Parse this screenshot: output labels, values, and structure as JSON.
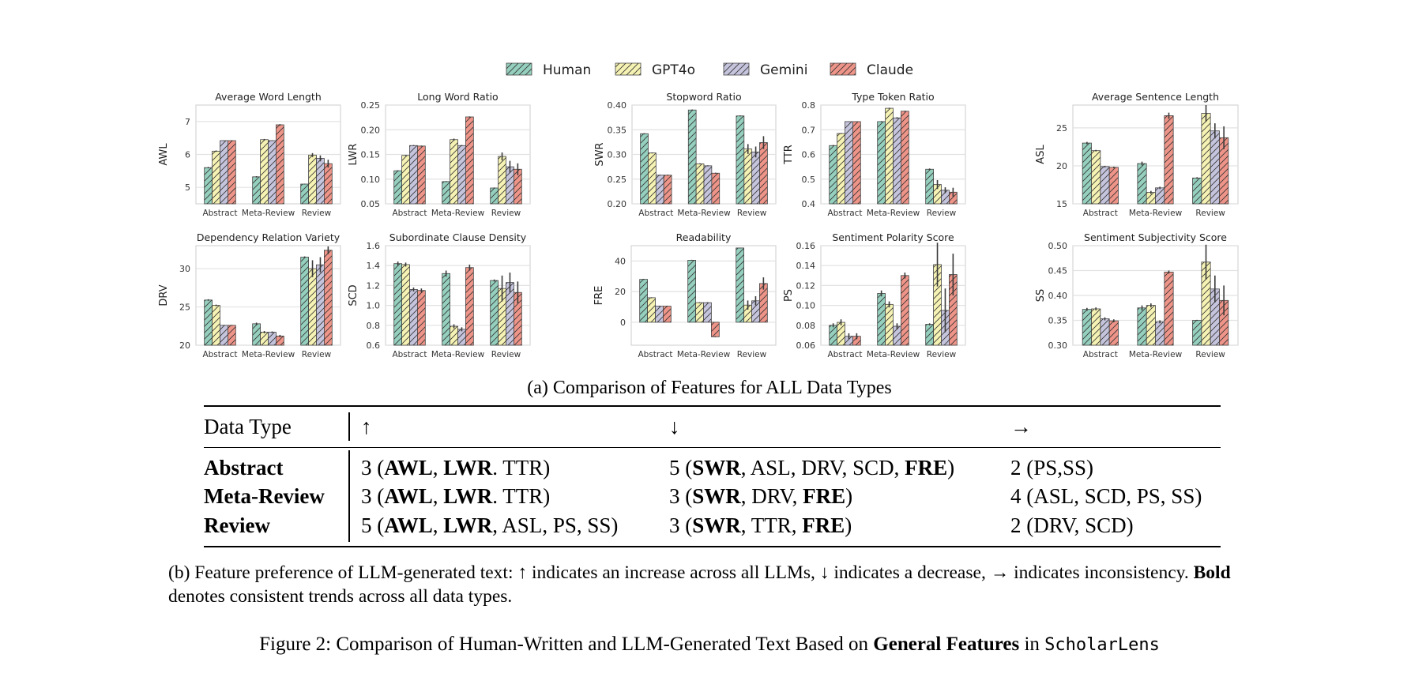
{
  "legend": [
    {
      "name": "Human",
      "color": "#95cfbd"
    },
    {
      "name": "GPT4o",
      "color": "#f5f2b3"
    },
    {
      "name": "Gemini",
      "color": "#c5c4dd"
    },
    {
      "name": "Claude",
      "color": "#ee9488"
    }
  ],
  "chart_data": [
    {
      "type": "bar",
      "title": "Average Word Length",
      "ylabel": "AWL",
      "ylim": [
        4.5,
        7.5
      ],
      "yticks": [
        5,
        6,
        7
      ],
      "grid": true,
      "categories": [
        "Abstract",
        "Meta-Review",
        "Review"
      ],
      "series": [
        {
          "name": "Human",
          "values": [
            5.6,
            5.32,
            5.1
          ],
          "errors": [
            0.02,
            0.02,
            0.01
          ]
        },
        {
          "name": "GPT4o",
          "values": [
            6.1,
            6.45,
            5.98
          ],
          "errors": [
            0.02,
            0.02,
            0.06
          ]
        },
        {
          "name": "Gemini",
          "values": [
            6.42,
            6.42,
            5.88
          ],
          "errors": [
            0.01,
            0.01,
            0.09
          ]
        },
        {
          "name": "Claude",
          "values": [
            6.42,
            6.9,
            5.72
          ],
          "errors": [
            0.01,
            0.02,
            0.12
          ]
        }
      ]
    },
    {
      "type": "bar",
      "title": "Long Word Ratio",
      "ylabel": "LWR",
      "ylim": [
        0.05,
        0.25
      ],
      "yticks": [
        0.05,
        0.1,
        0.15,
        0.2,
        0.25
      ],
      "grid": true,
      "categories": [
        "Abstract",
        "Meta-Review",
        "Review"
      ],
      "series": [
        {
          "name": "Human",
          "values": [
            0.117,
            0.095,
            0.082
          ],
          "errors": [
            0.001,
            0.001,
            0.001
          ]
        },
        {
          "name": "GPT4o",
          "values": [
            0.148,
            0.18,
            0.146
          ],
          "errors": [
            0.001,
            0.002,
            0.008
          ]
        },
        {
          "name": "Gemini",
          "values": [
            0.168,
            0.168,
            0.125
          ],
          "errors": [
            0.001,
            0.001,
            0.012
          ]
        },
        {
          "name": "Claude",
          "values": [
            0.167,
            0.226,
            0.12
          ],
          "errors": [
            0.001,
            0.001,
            0.012
          ]
        }
      ]
    },
    {
      "type": "bar",
      "title": "Stopword Ratio",
      "ylabel": "SWR",
      "ylim": [
        0.2,
        0.4
      ],
      "yticks": [
        0.2,
        0.25,
        0.3,
        0.35,
        0.4
      ],
      "grid": true,
      "categories": [
        "Abstract",
        "Meta-Review",
        "Review"
      ],
      "series": [
        {
          "name": "Human",
          "values": [
            0.342,
            0.39,
            0.378
          ],
          "errors": [
            0.001,
            0.001,
            0.001
          ]
        },
        {
          "name": "GPT4o",
          "values": [
            0.303,
            0.281,
            0.311
          ],
          "errors": [
            0.001,
            0.001,
            0.01
          ]
        },
        {
          "name": "Gemini",
          "values": [
            0.258,
            0.277,
            0.305
          ],
          "errors": [
            0.001,
            0.001,
            0.011
          ]
        },
        {
          "name": "Claude",
          "values": [
            0.258,
            0.262,
            0.324
          ],
          "errors": [
            0.001,
            0.001,
            0.013
          ]
        }
      ]
    },
    {
      "type": "bar",
      "title": "Type Token Ratio",
      "ylabel": "TTR",
      "ylim": [
        0.4,
        0.8
      ],
      "yticks": [
        0.4,
        0.5,
        0.6,
        0.7,
        0.8
      ],
      "grid": true,
      "categories": [
        "Abstract",
        "Meta-Review",
        "Review"
      ],
      "series": [
        {
          "name": "Human",
          "values": [
            0.636,
            0.733,
            0.54
          ],
          "errors": [
            0.002,
            0.002,
            0.003
          ]
        },
        {
          "name": "GPT4o",
          "values": [
            0.685,
            0.787,
            0.478
          ],
          "errors": [
            0.002,
            0.002,
            0.018
          ]
        },
        {
          "name": "Gemini",
          "values": [
            0.733,
            0.748,
            0.455
          ],
          "errors": [
            0.001,
            0.003,
            0.012
          ]
        },
        {
          "name": "Claude",
          "values": [
            0.733,
            0.775,
            0.447
          ],
          "errors": [
            0.001,
            0.002,
            0.018
          ]
        }
      ]
    },
    {
      "type": "bar",
      "title": "Average Sentence Length",
      "ylabel": "ASL",
      "ylim": [
        15,
        28
      ],
      "yticks": [
        15,
        20,
        25
      ],
      "grid": true,
      "categories": [
        "Abstract",
        "Meta-Review",
        "Review"
      ],
      "series": [
        {
          "name": "Human",
          "values": [
            23.0,
            20.3,
            18.4
          ],
          "errors": [
            0.15,
            0.25,
            0.1
          ]
        },
        {
          "name": "GPT4o",
          "values": [
            22.0,
            16.5,
            26.9
          ],
          "errors": [
            0.1,
            0.2,
            1.1
          ]
        },
        {
          "name": "Gemini",
          "values": [
            19.9,
            17.1,
            24.6
          ],
          "errors": [
            0.1,
            0.15,
            1.0
          ]
        },
        {
          "name": "Claude",
          "values": [
            19.8,
            26.6,
            23.7
          ],
          "errors": [
            0.1,
            0.4,
            1.5
          ]
        }
      ]
    },
    {
      "type": "bar",
      "title": "Dependency Relation Variety",
      "ylabel": "DRV",
      "ylim": [
        20,
        33
      ],
      "yticks": [
        20,
        25,
        30
      ],
      "grid": true,
      "categories": [
        "Abstract",
        "Meta-Review",
        "Review"
      ],
      "series": [
        {
          "name": "Human",
          "values": [
            25.9,
            22.8,
            31.5
          ],
          "errors": [
            0.1,
            0.15,
            0.1
          ]
        },
        {
          "name": "GPT4o",
          "values": [
            25.2,
            21.7,
            30.0
          ],
          "errors": [
            0.1,
            0.15,
            1.1
          ]
        },
        {
          "name": "Gemini",
          "values": [
            22.6,
            21.7,
            30.5
          ],
          "errors": [
            0.05,
            0.1,
            1.0
          ]
        },
        {
          "name": "Claude",
          "values": [
            22.6,
            21.2,
            32.4
          ],
          "errors": [
            0.05,
            0.15,
            0.5
          ]
        }
      ]
    },
    {
      "type": "bar",
      "title": "Subordinate Clause Density",
      "ylabel": "SCD",
      "ylim": [
        0.6,
        1.6
      ],
      "yticks": [
        0.6,
        0.8,
        1.0,
        1.2,
        1.4,
        1.6
      ],
      "grid": true,
      "categories": [
        "Abstract",
        "Meta-Review",
        "Review"
      ],
      "series": [
        {
          "name": "Human",
          "values": [
            1.42,
            1.32,
            1.25
          ],
          "errors": [
            0.02,
            0.03,
            0.01
          ]
        },
        {
          "name": "GPT4o",
          "values": [
            1.41,
            0.79,
            1.17
          ],
          "errors": [
            0.02,
            0.02,
            0.13
          ]
        },
        {
          "name": "Gemini",
          "values": [
            1.16,
            0.76,
            1.23
          ],
          "errors": [
            0.02,
            0.02,
            0.1
          ]
        },
        {
          "name": "Claude",
          "values": [
            1.15,
            1.38,
            1.13
          ],
          "errors": [
            0.02,
            0.03,
            0.11
          ]
        }
      ]
    },
    {
      "type": "bar",
      "title": "Readability",
      "ylabel": "FRE",
      "ylim": [
        -15,
        50
      ],
      "yticks": [
        0,
        20,
        40
      ],
      "grid": true,
      "categories": [
        "Abstract",
        "Meta-Review",
        "Review"
      ],
      "series": [
        {
          "name": "Human",
          "values": [
            28,
            40.5,
            48.5
          ],
          "errors": [
            0.3,
            0.3,
            0.2
          ]
        },
        {
          "name": "GPT4o",
          "values": [
            16,
            12.8,
            11.2
          ],
          "errors": [
            0.3,
            0.3,
            3
          ]
        },
        {
          "name": "Gemini",
          "values": [
            10.5,
            12.8,
            14
          ],
          "errors": [
            0.3,
            0.3,
            3
          ]
        },
        {
          "name": "Claude",
          "values": [
            10.5,
            -9.5,
            25.3
          ],
          "errors": [
            0.3,
            0.3,
            4
          ]
        }
      ]
    },
    {
      "type": "bar",
      "title": "Sentiment Polarity Score",
      "ylabel": "PS",
      "ylim": [
        0.06,
        0.16
      ],
      "yticks": [
        0.06,
        0.08,
        0.1,
        0.12,
        0.14,
        0.16
      ],
      "grid": true,
      "categories": [
        "Abstract",
        "Meta-Review",
        "Review"
      ],
      "series": [
        {
          "name": "Human",
          "values": [
            0.08,
            0.112,
            0.081
          ],
          "errors": [
            0.002,
            0.003,
            0.001
          ]
        },
        {
          "name": "GPT4o",
          "values": [
            0.083,
            0.101,
            0.141
          ],
          "errors": [
            0.003,
            0.003,
            0.022
          ]
        },
        {
          "name": "Gemini",
          "values": [
            0.069,
            0.079,
            0.095
          ],
          "errors": [
            0.003,
            0.003,
            0.022
          ]
        },
        {
          "name": "Claude",
          "values": [
            0.069,
            0.13,
            0.131
          ],
          "errors": [
            0.003,
            0.003,
            0.021
          ]
        }
      ]
    },
    {
      "type": "bar",
      "title": "Sentiment Subjectivity Score",
      "ylabel": "SS",
      "ylim": [
        0.3,
        0.5
      ],
      "yticks": [
        0.3,
        0.35,
        0.4,
        0.45,
        0.5
      ],
      "grid": true,
      "categories": [
        "Abstract",
        "Meta-Review",
        "Review"
      ],
      "series": [
        {
          "name": "Human",
          "values": [
            0.372,
            0.375,
            0.35
          ],
          "errors": [
            0.003,
            0.005,
            0.001
          ]
        },
        {
          "name": "GPT4o",
          "values": [
            0.373,
            0.38,
            0.467
          ],
          "errors": [
            0.003,
            0.004,
            0.035
          ]
        },
        {
          "name": "Gemini",
          "values": [
            0.353,
            0.347,
            0.413
          ],
          "errors": [
            0.003,
            0.003,
            0.027
          ]
        },
        {
          "name": "Claude",
          "values": [
            0.349,
            0.447,
            0.39
          ],
          "errors": [
            0.003,
            0.003,
            0.03
          ]
        }
      ]
    }
  ],
  "caption_a": "(a) Comparison of Features for ALL Data Types",
  "table": {
    "headers": [
      "Data Type",
      "↑",
      "↓",
      "→"
    ],
    "rows": [
      {
        "label": "Abstract",
        "cells": [
          [
            {
              "t": "3 ("
            },
            {
              "t": "AWL",
              "b": true
            },
            {
              "t": ", "
            },
            {
              "t": "LWR",
              "b": true
            },
            {
              "t": ". TTR)"
            }
          ],
          [
            {
              "t": "5 ("
            },
            {
              "t": "SWR",
              "b": true
            },
            {
              "t": ", ASL, DRV, SCD, "
            },
            {
              "t": "FRE",
              "b": true
            },
            {
              "t": ")"
            }
          ],
          [
            {
              "t": "2 (PS,SS)"
            }
          ]
        ]
      },
      {
        "label": "Meta-Review",
        "cells": [
          [
            {
              "t": "3 ("
            },
            {
              "t": "AWL",
              "b": true
            },
            {
              "t": ", "
            },
            {
              "t": "LWR",
              "b": true
            },
            {
              "t": ". TTR)"
            }
          ],
          [
            {
              "t": "3 ("
            },
            {
              "t": "SWR",
              "b": true
            },
            {
              "t": ", DRV, "
            },
            {
              "t": "FRE",
              "b": true
            },
            {
              "t": ")"
            }
          ],
          [
            {
              "t": "4 (ASL, SCD, PS, SS)"
            }
          ]
        ]
      },
      {
        "label": "Review",
        "cells": [
          [
            {
              "t": "5 ("
            },
            {
              "t": "AWL",
              "b": true
            },
            {
              "t": ", "
            },
            {
              "t": "LWR",
              "b": true
            },
            {
              "t": ", ASL, PS, SS)"
            }
          ],
          [
            {
              "t": "3 ("
            },
            {
              "t": "SWR",
              "b": true
            },
            {
              "t": ", TTR, "
            },
            {
              "t": "FRE",
              "b": true
            },
            {
              "t": ")"
            }
          ],
          [
            {
              "t": "2 (DRV, SCD)"
            }
          ]
        ]
      }
    ]
  },
  "caption_b": [
    {
      "t": "(b) Feature preference of LLM-generated text: ↑ indicates an increase across all LLMs, ↓ indicates a decrease, → indicates inconsistency. "
    },
    {
      "t": "Bold",
      "b": true
    },
    {
      "t": " denotes consistent trends across all data types."
    }
  ],
  "figure_caption": [
    {
      "t": "Figure 2: Comparison of Human-Written and LLM-Generated Text Based on "
    },
    {
      "t": "General Features",
      "b": true
    },
    {
      "t": " in "
    },
    {
      "t": "ScholarLens",
      "m": true
    }
  ]
}
